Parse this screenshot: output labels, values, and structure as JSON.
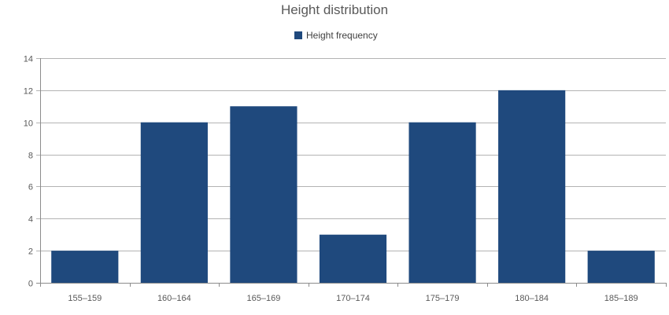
{
  "chart_data": {
    "type": "bar",
    "title": "Height distribution",
    "categories": [
      "155–159",
      "160–164",
      "165–169",
      "170–174",
      "175–179",
      "180–184",
      "185–189"
    ],
    "series": [
      {
        "name": "Height frequency",
        "values": [
          2,
          10,
          11,
          3,
          10,
          12,
          2
        ]
      }
    ],
    "xlabel": "",
    "ylabel": "",
    "ylim": [
      0,
      14
    ],
    "ytick_step": 2,
    "grid": true,
    "legend_position": "top-center",
    "colors": {
      "bar": "#1F497D",
      "grid": "#B3B3B3",
      "axis": "#8C8C8C"
    }
  }
}
